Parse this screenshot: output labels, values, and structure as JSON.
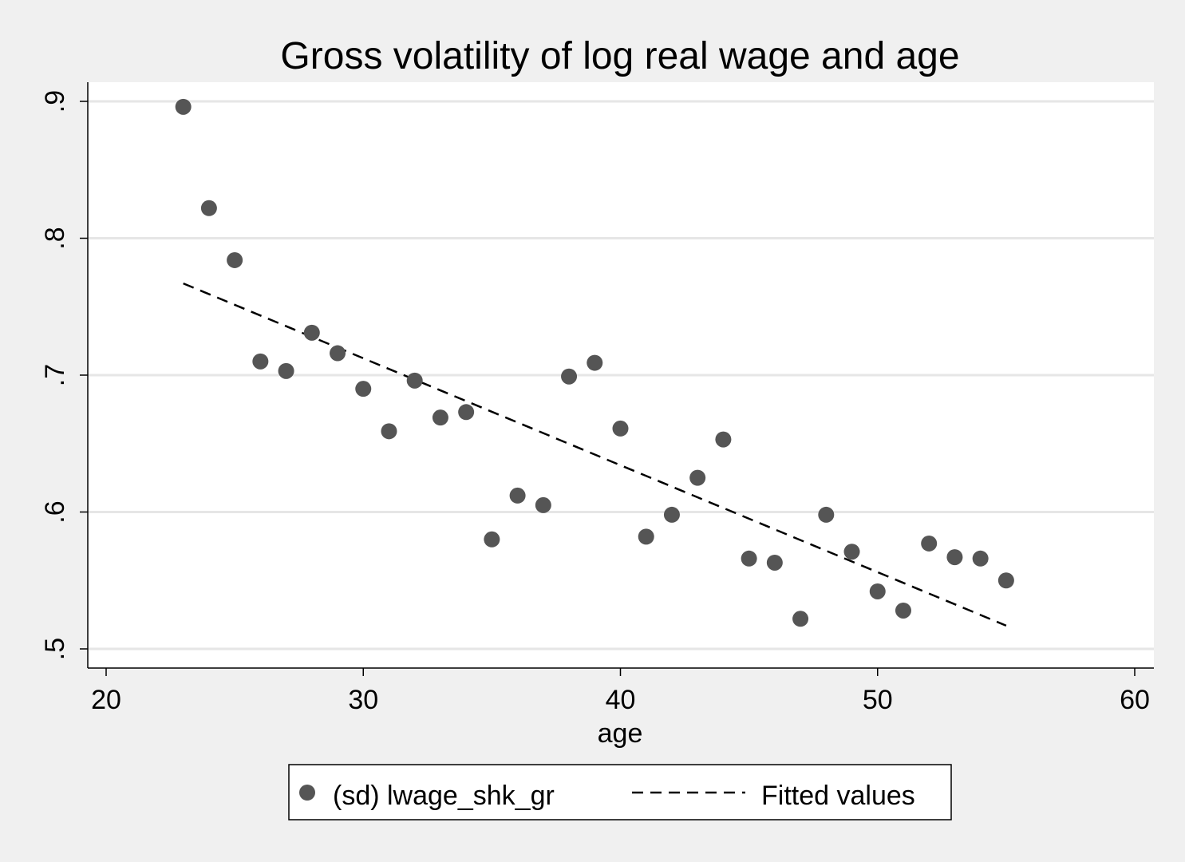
{
  "chart_data": {
    "type": "scatter",
    "title": "Gross volatility of log real wage and age",
    "xlabel": "age",
    "ylabel": "",
    "xlim": [
      20,
      60
    ],
    "ylim": [
      0.5,
      0.9
    ],
    "x_ticks": [
      20,
      30,
      40,
      50,
      60
    ],
    "x_tick_labels": [
      "20",
      "30",
      "40",
      "50",
      "60"
    ],
    "y_ticks": [
      0.5,
      0.6,
      0.7,
      0.8,
      0.9
    ],
    "y_tick_labels": [
      ".5",
      ".6",
      ".7",
      ".8",
      ".9"
    ],
    "grid": "horizontal",
    "legend_position": "bottom",
    "series": [
      {
        "name": "(sd) lwage_shk_gr",
        "kind": "scatter",
        "color": "#555555",
        "x": [
          23,
          24,
          25,
          26,
          27,
          28,
          29,
          30,
          31,
          32,
          33,
          34,
          35,
          36,
          37,
          38,
          39,
          40,
          41,
          42,
          43,
          44,
          45,
          46,
          47,
          48,
          49,
          50,
          51,
          52,
          53,
          54,
          55
        ],
        "y": [
          0.896,
          0.822,
          0.784,
          0.71,
          0.703,
          0.731,
          0.716,
          0.69,
          0.659,
          0.696,
          0.669,
          0.673,
          0.58,
          0.612,
          0.605,
          0.699,
          0.709,
          0.661,
          0.582,
          0.598,
          0.625,
          0.653,
          0.566,
          0.563,
          0.522,
          0.598,
          0.571,
          0.542,
          0.528,
          0.577,
          0.567,
          0.566,
          0.55
        ]
      },
      {
        "name": "Fitted values",
        "kind": "line",
        "style": "dashed",
        "color": "#000000",
        "x": [
          23,
          55
        ],
        "y": [
          0.767,
          0.517
        ]
      }
    ]
  }
}
